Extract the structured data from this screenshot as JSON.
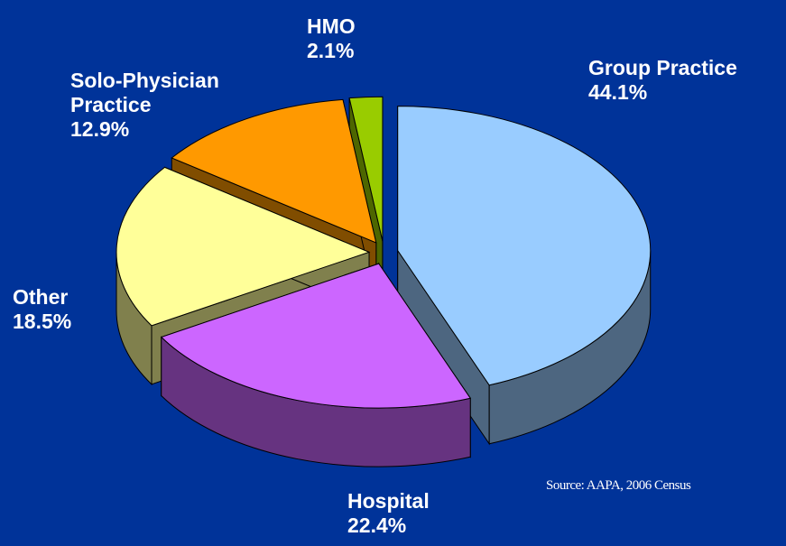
{
  "chart_data": {
    "type": "pie",
    "categories": [
      "Group Practice",
      "Hospital",
      "Other",
      "Solo-Physician Practice",
      "HMO"
    ],
    "values": [
      44.1,
      22.4,
      18.5,
      12.9,
      2.1
    ],
    "value_labels": [
      "44.1%",
      "22.4%",
      "18.5%",
      "12.9%",
      "2.1%"
    ],
    "colors": [
      "#99ccff",
      "#cc66ff",
      "#ffff99",
      "#ff9900",
      "#99cc00"
    ],
    "annotation": "Source: AAPA, 2006 Census"
  }
}
